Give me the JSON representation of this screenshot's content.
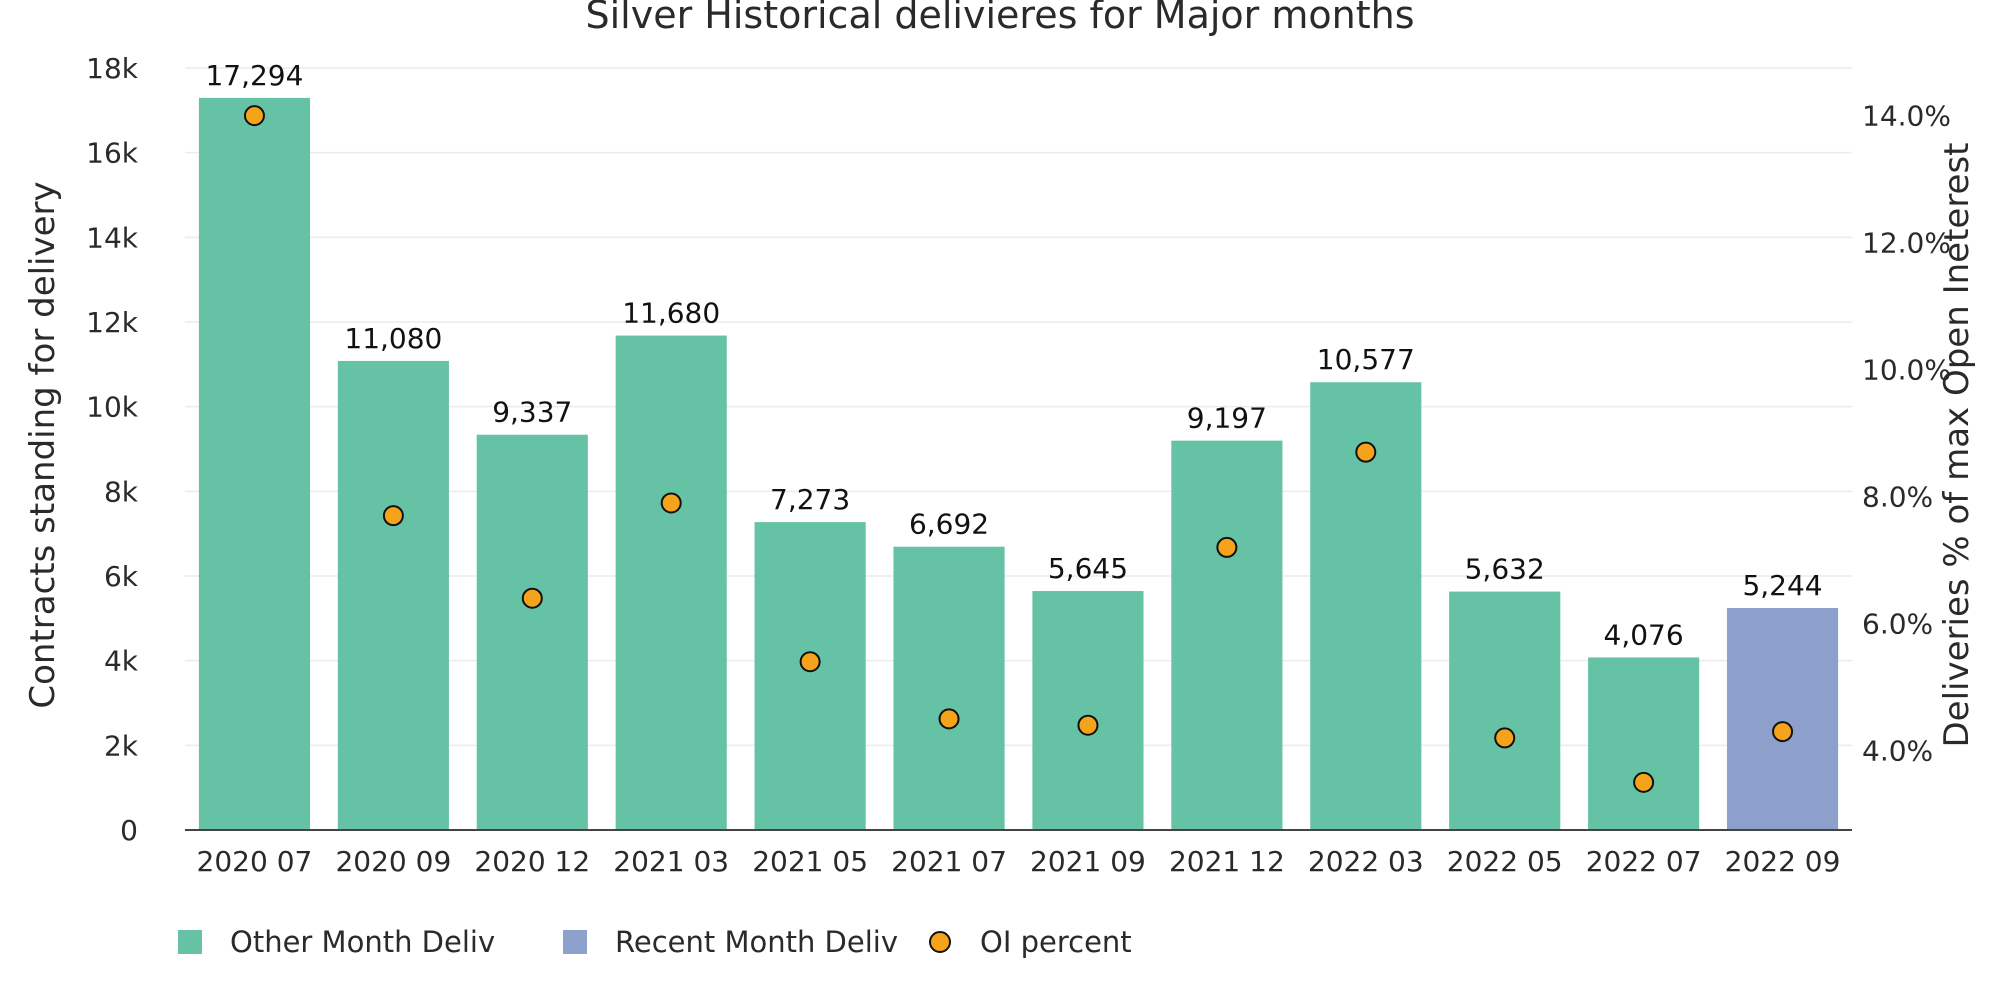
{
  "chart_data": {
    "type": "bar",
    "title": "Silver Historical delivieres for Major months",
    "ylabel": "Contracts standing for delivery",
    "y2label": "Deliveries % of max Open Ineterest",
    "categories": [
      "2020 07",
      "2020 09",
      "2020 12",
      "2021 03",
      "2021 05",
      "2021 07",
      "2021 09",
      "2021 12",
      "2022 03",
      "2022 05",
      "2022 07",
      "2022 09"
    ],
    "series": [
      {
        "name": "Other Month Deliv",
        "kind": "bar",
        "color": "#66c2a5",
        "values": [
          17294,
          11080,
          9337,
          11680,
          7273,
          6692,
          5645,
          9197,
          10577,
          5632,
          4076,
          null
        ]
      },
      {
        "name": "Recent Month Deliv",
        "kind": "bar",
        "color": "#8da0cb",
        "values": [
          null,
          null,
          null,
          null,
          null,
          null,
          null,
          null,
          null,
          null,
          null,
          5244
        ]
      },
      {
        "name": "OI percent",
        "kind": "scatter",
        "axis": "y2",
        "color": "#f5a31a",
        "values": [
          14.0,
          7.7,
          6.4,
          7.9,
          5.4,
          4.5,
          4.4,
          7.2,
          8.7,
          4.2,
          3.5,
          4.3
        ]
      }
    ],
    "bar_labels": [
      "17,294",
      "11,080",
      "9,337",
      "11,680",
      "7,273",
      "6,692",
      "5,645",
      "9,197",
      "10,577",
      "5,632",
      "4,076",
      "5,244"
    ],
    "ylim": [
      0,
      18000
    ],
    "yticks": [
      0,
      2000,
      4000,
      6000,
      8000,
      10000,
      12000,
      14000,
      16000,
      18000
    ],
    "ytick_labels": [
      "0",
      "2k",
      "4k",
      "6k",
      "8k",
      "10k",
      "12k",
      "14k",
      "16k",
      "18k"
    ],
    "y2lim": [
      2.75,
      14.75
    ],
    "y2ticks": [
      4.0,
      6.0,
      8.0,
      10.0,
      12.0,
      14.0
    ],
    "y2tick_labels": [
      "4.0%",
      "6.0%",
      "8.0%",
      "10.0%",
      "12.0%",
      "14.0%"
    ],
    "grid": true,
    "legend_position": "bottom-left"
  }
}
